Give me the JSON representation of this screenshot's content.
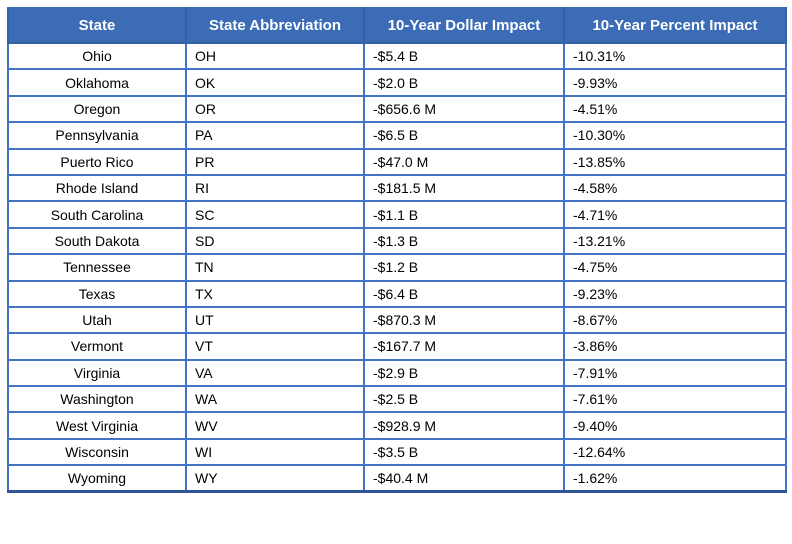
{
  "colors": {
    "header_bg": "#3B6CB5",
    "header_divider": "#34619F",
    "border": "#4472C4",
    "bottom_border": "#2F5597",
    "header_text": "#FFFFFF",
    "cell_text": "#000000",
    "page_bg": "#FFFFFF"
  },
  "chart_data": {
    "type": "table",
    "title": "",
    "columns": [
      "State",
      "State Abbreviation",
      "10-Year Dollar Impact",
      "10-Year Percent Impact"
    ],
    "rows": [
      [
        "Ohio",
        "OH",
        "-$5.4 B",
        "-10.31%"
      ],
      [
        "Oklahoma",
        "OK",
        "-$2.0 B",
        "-9.93%"
      ],
      [
        "Oregon",
        "OR",
        "-$656.6 M",
        "-4.51%"
      ],
      [
        "Pennsylvania",
        "PA",
        "-$6.5 B",
        "-10.30%"
      ],
      [
        "Puerto Rico",
        "PR",
        "-$47.0 M",
        "-13.85%"
      ],
      [
        "Rhode Island",
        "RI",
        "-$181.5 M",
        "-4.58%"
      ],
      [
        "South Carolina",
        "SC",
        "-$1.1 B",
        "-4.71%"
      ],
      [
        "South Dakota",
        "SD",
        "-$1.3 B",
        "-13.21%"
      ],
      [
        "Tennessee",
        "TN",
        "-$1.2 B",
        "-4.75%"
      ],
      [
        "Texas",
        "TX",
        "-$6.4 B",
        "-9.23%"
      ],
      [
        "Utah",
        "UT",
        "-$870.3 M",
        "-8.67%"
      ],
      [
        "Vermont",
        "VT",
        "-$167.7 M",
        "-3.86%"
      ],
      [
        "Virginia",
        "VA",
        "-$2.9 B",
        "-7.91%"
      ],
      [
        "Washington",
        "WA",
        "-$2.5 B",
        "-7.61%"
      ],
      [
        "West Virginia",
        "WV",
        "-$928.9 M",
        "-9.40%"
      ],
      [
        "Wisconsin",
        "WI",
        "-$3.5 B",
        "-12.64%"
      ],
      [
        "Wyoming",
        "WY",
        "-$40.4 M",
        "-1.62%"
      ]
    ]
  }
}
